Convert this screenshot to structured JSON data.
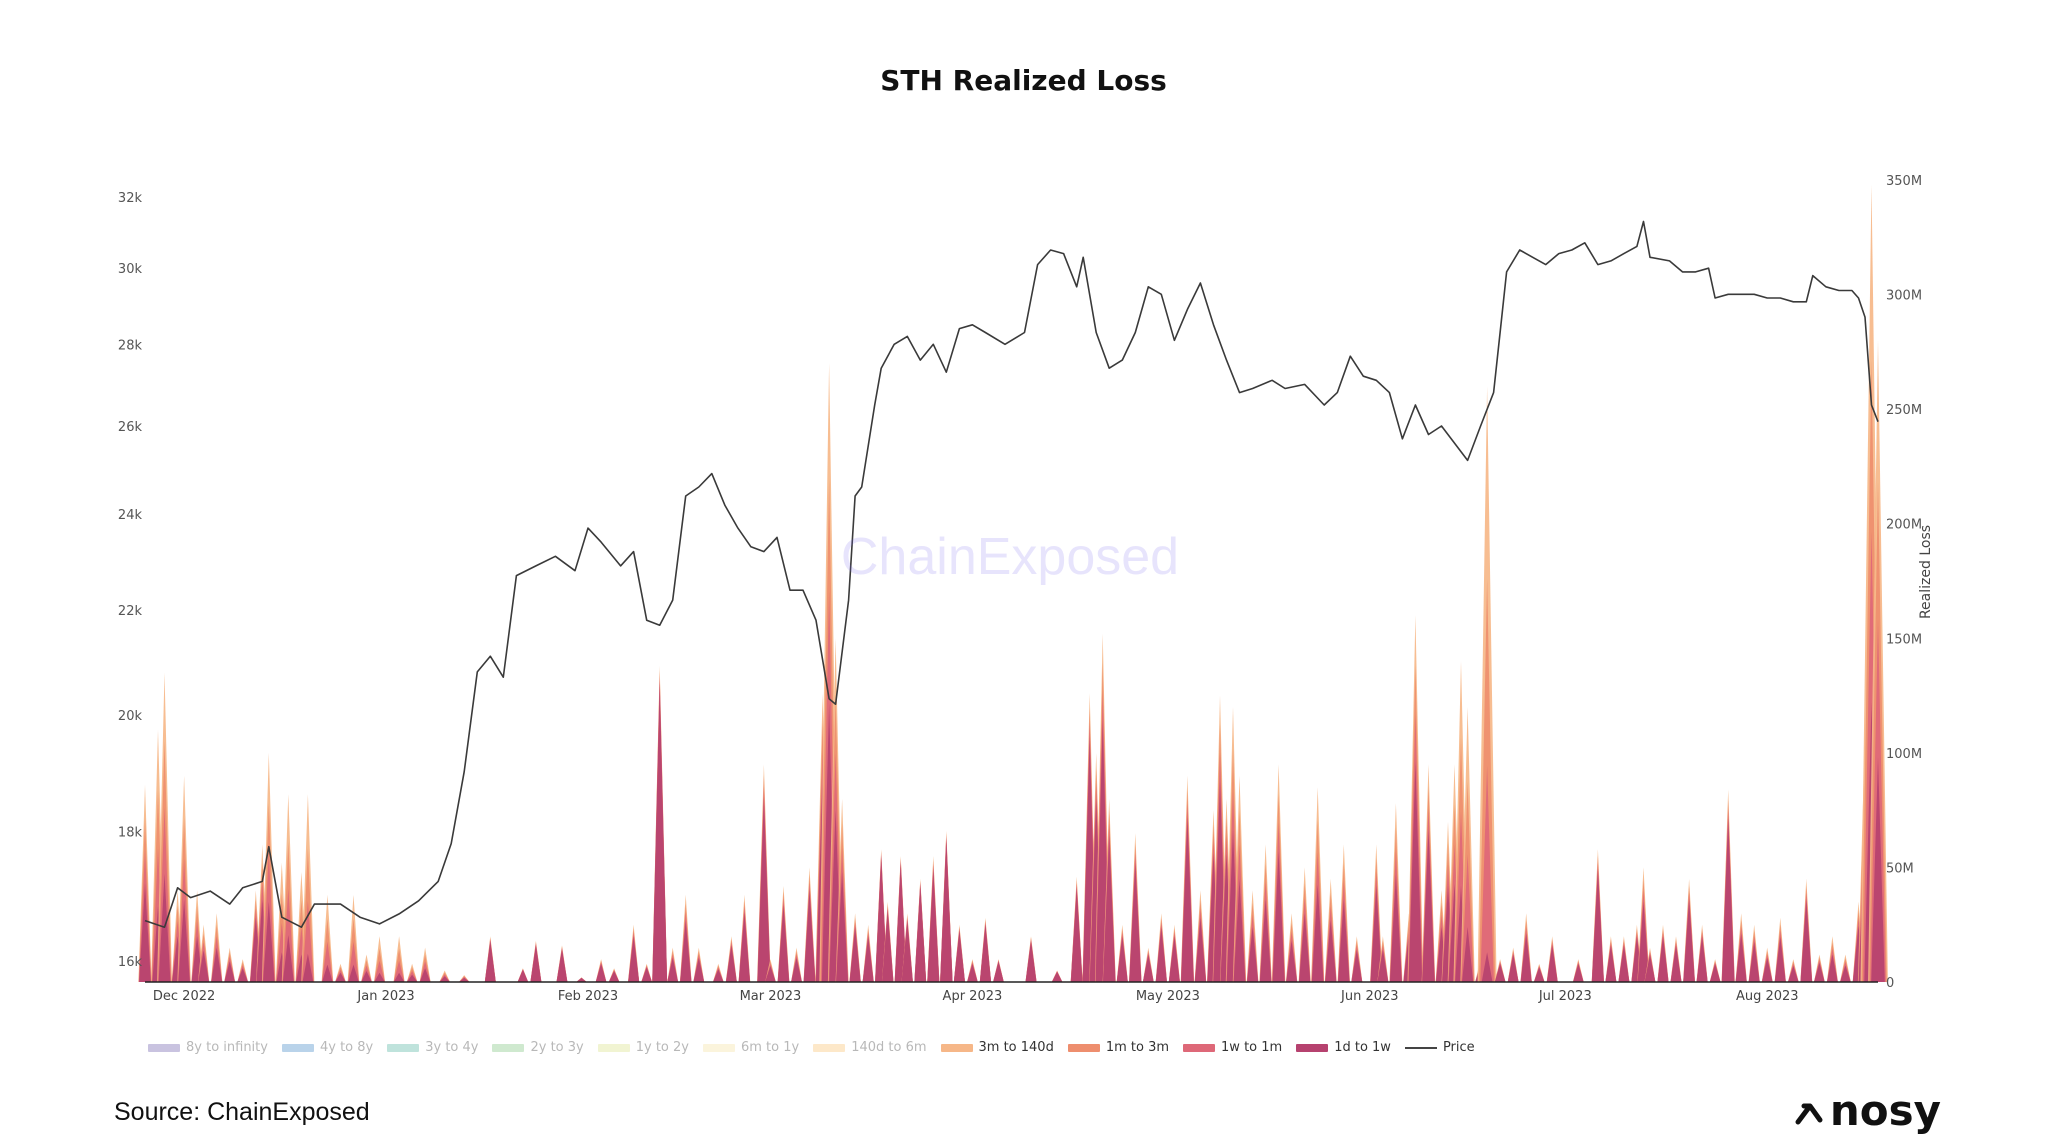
{
  "chart_data": {
    "type": "area",
    "title": "STH Realized Loss",
    "watermark": "ChainExposed",
    "x_range": [
      "2022-11-25",
      "2023-08-18"
    ],
    "x_tick_labels": [
      "Dec 2022",
      "Jan 2023",
      "Feb 2023",
      "Mar 2023",
      "Apr 2023",
      "May 2023",
      "Jun 2023",
      "Jul 2023",
      "Aug 2023"
    ],
    "x_tick_dates": [
      "2022-12-01",
      "2023-01-01",
      "2023-02-01",
      "2023-03-01",
      "2023-04-01",
      "2023-05-01",
      "2023-06-01",
      "2023-07-01",
      "2023-08-01"
    ],
    "y_left": {
      "label": "",
      "scale": "log",
      "range": [
        15700,
        32500
      ],
      "tick_labels": [
        "16k",
        "18k",
        "20k",
        "22k",
        "24k",
        "26k",
        "28k",
        "30k",
        "32k"
      ],
      "tick_values": [
        16000,
        18000,
        20000,
        22000,
        24000,
        26000,
        28000,
        30000,
        32000
      ]
    },
    "y_right": {
      "label": "Realized Loss",
      "scale": "linear",
      "range": [
        0,
        350000000
      ],
      "tick_labels": [
        "0",
        "50M",
        "100M",
        "150M",
        "200M",
        "250M",
        "300M",
        "350M"
      ],
      "tick_values": [
        0,
        50000000,
        100000000,
        150000000,
        200000000,
        250000000,
        300000000,
        350000000
      ]
    },
    "legend_position": "bottom",
    "grid": false,
    "legend": [
      {
        "name": "8y to infinity",
        "color": "#c9c3e0",
        "faded": true
      },
      {
        "name": "4y to 8y",
        "color": "#b9d3ea",
        "faded": true
      },
      {
        "name": "3y to 4y",
        "color": "#bfe3dc",
        "faded": true
      },
      {
        "name": "2y to 3y",
        "color": "#cfe9cf",
        "faded": true
      },
      {
        "name": "1y to 2y",
        "color": "#f1f4d2",
        "faded": true
      },
      {
        "name": "6m to 1y",
        "color": "#fbf4dc",
        "faded": true
      },
      {
        "name": "140d to 6m",
        "color": "#fde8c9",
        "faded": true
      },
      {
        "name": "3m to 140d",
        "color": "#f6b788",
        "faded": false
      },
      {
        "name": "1m to 3m",
        "color": "#ee8e6e",
        "faded": false
      },
      {
        "name": "1w to 1m",
        "color": "#de6878",
        "faded": false
      },
      {
        "name": "1d to 1w",
        "color": "#b6426f",
        "faded": false
      },
      {
        "name": "Price",
        "color": "#444444",
        "faded": false,
        "line": true
      }
    ],
    "price_series": {
      "name": "Price",
      "points": [
        [
          "2022-11-25",
          16600
        ],
        [
          "2022-11-28",
          16500
        ],
        [
          "2022-11-30",
          17100
        ],
        [
          "2022-12-02",
          16950
        ],
        [
          "2022-12-05",
          17050
        ],
        [
          "2022-12-08",
          16850
        ],
        [
          "2022-12-10",
          17100
        ],
        [
          "2022-12-13",
          17200
        ],
        [
          "2022-12-14",
          17750
        ],
        [
          "2022-12-16",
          16650
        ],
        [
          "2022-12-19",
          16500
        ],
        [
          "2022-12-21",
          16850
        ],
        [
          "2022-12-25",
          16850
        ],
        [
          "2022-12-28",
          16650
        ],
        [
          "2022-12-31",
          16550
        ],
        [
          "2023-01-03",
          16700
        ],
        [
          "2023-01-06",
          16900
        ],
        [
          "2023-01-09",
          17200
        ],
        [
          "2023-01-11",
          17800
        ],
        [
          "2023-01-13",
          19000
        ],
        [
          "2023-01-15",
          20800
        ],
        [
          "2023-01-17",
          21100
        ],
        [
          "2023-01-19",
          20700
        ],
        [
          "2023-01-21",
          22700
        ],
        [
          "2023-01-24",
          22900
        ],
        [
          "2023-01-27",
          23100
        ],
        [
          "2023-01-30",
          22800
        ],
        [
          "2023-02-01",
          23700
        ],
        [
          "2023-02-03",
          23400
        ],
        [
          "2023-02-06",
          22900
        ],
        [
          "2023-02-08",
          23200
        ],
        [
          "2023-02-10",
          21800
        ],
        [
          "2023-02-12",
          21700
        ],
        [
          "2023-02-14",
          22200
        ],
        [
          "2023-02-16",
          24400
        ],
        [
          "2023-02-18",
          24600
        ],
        [
          "2023-02-20",
          24900
        ],
        [
          "2023-02-22",
          24200
        ],
        [
          "2023-02-24",
          23700
        ],
        [
          "2023-02-26",
          23300
        ],
        [
          "2023-02-28",
          23200
        ],
        [
          "2023-03-02",
          23500
        ],
        [
          "2023-03-04",
          22400
        ],
        [
          "2023-03-06",
          22400
        ],
        [
          "2023-03-08",
          21800
        ],
        [
          "2023-03-10",
          20300
        ],
        [
          "2023-03-11",
          20200
        ],
        [
          "2023-03-13",
          22200
        ],
        [
          "2023-03-14",
          24400
        ],
        [
          "2023-03-15",
          24600
        ],
        [
          "2023-03-17",
          26500
        ],
        [
          "2023-03-18",
          27400
        ],
        [
          "2023-03-20",
          28000
        ],
        [
          "2023-03-22",
          28200
        ],
        [
          "2023-03-24",
          27600
        ],
        [
          "2023-03-26",
          28000
        ],
        [
          "2023-03-28",
          27300
        ],
        [
          "2023-03-30",
          28400
        ],
        [
          "2023-04-01",
          28500
        ],
        [
          "2023-04-03",
          28300
        ],
        [
          "2023-04-06",
          28000
        ],
        [
          "2023-04-09",
          28300
        ],
        [
          "2023-04-11",
          30100
        ],
        [
          "2023-04-13",
          30500
        ],
        [
          "2023-04-15",
          30400
        ],
        [
          "2023-04-17",
          29500
        ],
        [
          "2023-04-18",
          30300
        ],
        [
          "2023-04-20",
          28300
        ],
        [
          "2023-04-22",
          27400
        ],
        [
          "2023-04-24",
          27600
        ],
        [
          "2023-04-26",
          28300
        ],
        [
          "2023-04-28",
          29500
        ],
        [
          "2023-04-30",
          29300
        ],
        [
          "2023-05-02",
          28100
        ],
        [
          "2023-05-04",
          28900
        ],
        [
          "2023-05-06",
          29600
        ],
        [
          "2023-05-08",
          28500
        ],
        [
          "2023-05-10",
          27600
        ],
        [
          "2023-05-12",
          26800
        ],
        [
          "2023-05-14",
          26900
        ],
        [
          "2023-05-17",
          27100
        ],
        [
          "2023-05-19",
          26900
        ],
        [
          "2023-05-22",
          27000
        ],
        [
          "2023-05-25",
          26500
        ],
        [
          "2023-05-27",
          26800
        ],
        [
          "2023-05-29",
          27700
        ],
        [
          "2023-05-31",
          27200
        ],
        [
          "2023-06-02",
          27100
        ],
        [
          "2023-06-04",
          26800
        ],
        [
          "2023-06-06",
          25700
        ],
        [
          "2023-06-08",
          26500
        ],
        [
          "2023-06-10",
          25800
        ],
        [
          "2023-06-12",
          26000
        ],
        [
          "2023-06-14",
          25600
        ],
        [
          "2023-06-16",
          25200
        ],
        [
          "2023-06-18",
          26000
        ],
        [
          "2023-06-20",
          26800
        ],
        [
          "2023-06-21",
          28300
        ],
        [
          "2023-06-22",
          29900
        ],
        [
          "2023-06-24",
          30500
        ],
        [
          "2023-06-26",
          30300
        ],
        [
          "2023-06-28",
          30100
        ],
        [
          "2023-06-30",
          30400
        ],
        [
          "2023-07-02",
          30500
        ],
        [
          "2023-07-04",
          30700
        ],
        [
          "2023-07-06",
          30100
        ],
        [
          "2023-07-08",
          30200
        ],
        [
          "2023-07-10",
          30400
        ],
        [
          "2023-07-12",
          30600
        ],
        [
          "2023-07-13",
          31300
        ],
        [
          "2023-07-14",
          30300
        ],
        [
          "2023-07-17",
          30200
        ],
        [
          "2023-07-19",
          29900
        ],
        [
          "2023-07-21",
          29900
        ],
        [
          "2023-07-23",
          30000
        ],
        [
          "2023-07-24",
          29200
        ],
        [
          "2023-07-26",
          29300
        ],
        [
          "2023-07-28",
          29300
        ],
        [
          "2023-07-30",
          29300
        ],
        [
          "2023-08-01",
          29200
        ],
        [
          "2023-08-03",
          29200
        ],
        [
          "2023-08-05",
          29100
        ],
        [
          "2023-08-07",
          29100
        ],
        [
          "2023-08-08",
          29800
        ],
        [
          "2023-08-10",
          29500
        ],
        [
          "2023-08-12",
          29400
        ],
        [
          "2023-08-14",
          29400
        ],
        [
          "2023-08-15",
          29200
        ],
        [
          "2023-08-16",
          28700
        ],
        [
          "2023-08-17",
          26500
        ],
        [
          "2023-08-18",
          26100
        ]
      ]
    },
    "loss_spikes": [
      [
        "2022-11-25",
        86,
        0.5
      ],
      [
        "2022-11-27",
        110,
        0.3
      ],
      [
        "2022-11-28",
        135,
        0.35
      ],
      [
        "2022-11-30",
        40,
        0.5
      ],
      [
        "2022-12-01",
        90,
        0.4
      ],
      [
        "2022-12-03",
        40,
        0.5
      ],
      [
        "2022-12-04",
        25,
        0.55
      ],
      [
        "2022-12-06",
        30,
        0.5
      ],
      [
        "2022-12-08",
        15,
        0.6
      ],
      [
        "2022-12-10",
        10,
        0.6
      ],
      [
        "2022-12-12",
        40,
        0.7
      ],
      [
        "2022-12-13",
        60,
        0.6
      ],
      [
        "2022-12-14",
        100,
        0.35
      ],
      [
        "2022-12-16",
        52,
        0.25
      ],
      [
        "2022-12-17",
        82,
        0.25
      ],
      [
        "2022-12-19",
        48,
        0.25
      ],
      [
        "2022-12-20",
        82,
        0.15
      ],
      [
        "2022-12-23",
        38,
        0.2
      ],
      [
        "2022-12-25",
        8,
        0.5
      ],
      [
        "2022-12-27",
        38,
        0.2
      ],
      [
        "2022-12-29",
        12,
        0.4
      ],
      [
        "2022-12-31",
        20,
        0.2
      ],
      [
        "2023-01-03",
        20,
        0.2
      ],
      [
        "2023-01-05",
        8,
        0.4
      ],
      [
        "2023-01-07",
        15,
        0.4
      ],
      [
        "2023-01-10",
        5,
        0.5
      ],
      [
        "2023-01-13",
        3,
        0.6
      ],
      [
        "2023-01-17",
        20,
        0.9
      ],
      [
        "2023-01-22",
        6,
        0.9
      ],
      [
        "2023-01-24",
        18,
        0.9
      ],
      [
        "2023-01-28",
        16,
        0.9
      ],
      [
        "2023-01-31",
        2,
        0.9
      ],
      [
        "2023-02-03",
        10,
        0.8
      ],
      [
        "2023-02-05",
        6,
        0.8
      ],
      [
        "2023-02-08",
        25,
        0.8
      ],
      [
        "2023-02-10",
        8,
        0.8
      ],
      [
        "2023-02-12",
        138,
        0.95
      ],
      [
        "2023-02-14",
        15,
        0.7
      ],
      [
        "2023-02-16",
        38,
        0.7
      ],
      [
        "2023-02-18",
        15,
        0.7
      ],
      [
        "2023-02-21",
        8,
        0.7
      ],
      [
        "2023-02-23",
        20,
        0.8
      ],
      [
        "2023-02-25",
        38,
        0.8
      ],
      [
        "2023-02-28",
        95,
        0.85
      ],
      [
        "2023-03-01",
        10,
        0.7
      ],
      [
        "2023-03-03",
        42,
        0.8
      ],
      [
        "2023-03-05",
        15,
        0.7
      ],
      [
        "2023-03-07",
        50,
        0.8
      ],
      [
        "2023-03-09",
        126,
        0.7
      ],
      [
        "2023-03-10",
        270,
        0.45
      ],
      [
        "2023-03-11",
        150,
        0.5
      ],
      [
        "2023-03-12",
        80,
        0.6
      ],
      [
        "2023-03-14",
        30,
        0.8
      ],
      [
        "2023-03-16",
        25,
        0.8
      ],
      [
        "2023-03-18",
        58,
        0.95
      ],
      [
        "2023-03-19",
        35,
        0.9
      ],
      [
        "2023-03-21",
        55,
        0.95
      ],
      [
        "2023-03-22",
        30,
        0.9
      ],
      [
        "2023-03-24",
        45,
        0.95
      ],
      [
        "2023-03-26",
        55,
        0.9
      ],
      [
        "2023-03-28",
        66,
        0.95
      ],
      [
        "2023-03-30",
        25,
        0.9
      ],
      [
        "2023-04-01",
        10,
        0.8
      ],
      [
        "2023-04-03",
        28,
        0.9
      ],
      [
        "2023-04-05",
        10,
        0.9
      ],
      [
        "2023-04-10",
        20,
        0.9
      ],
      [
        "2023-04-14",
        5,
        0.9
      ],
      [
        "2023-04-17",
        46,
        0.9
      ],
      [
        "2023-04-19",
        126,
        0.85
      ],
      [
        "2023-04-20",
        100,
        0.8
      ],
      [
        "2023-04-21",
        152,
        0.75
      ],
      [
        "2023-04-22",
        80,
        0.8
      ],
      [
        "2023-04-24",
        25,
        0.8
      ],
      [
        "2023-04-26",
        65,
        0.8
      ],
      [
        "2023-04-28",
        15,
        0.8
      ],
      [
        "2023-04-30",
        30,
        0.8
      ],
      [
        "2023-05-02",
        25,
        0.8
      ],
      [
        "2023-05-04",
        90,
        0.8
      ],
      [
        "2023-05-06",
        40,
        0.7
      ],
      [
        "2023-05-08",
        75,
        0.75
      ],
      [
        "2023-05-09",
        125,
        0.7
      ],
      [
        "2023-05-10",
        80,
        0.7
      ],
      [
        "2023-05-11",
        120,
        0.55
      ],
      [
        "2023-05-12",
        90,
        0.5
      ],
      [
        "2023-05-14",
        40,
        0.6
      ],
      [
        "2023-05-16",
        60,
        0.6
      ],
      [
        "2023-05-18",
        95,
        0.6
      ],
      [
        "2023-05-20",
        30,
        0.6
      ],
      [
        "2023-05-22",
        50,
        0.6
      ],
      [
        "2023-05-24",
        85,
        0.5
      ],
      [
        "2023-05-26",
        45,
        0.6
      ],
      [
        "2023-05-28",
        60,
        0.6
      ],
      [
        "2023-05-30",
        20,
        0.7
      ],
      [
        "2023-06-02",
        60,
        0.7
      ],
      [
        "2023-06-03",
        20,
        0.7
      ],
      [
        "2023-06-05",
        78,
        0.6
      ],
      [
        "2023-06-07",
        30,
        0.7
      ],
      [
        "2023-06-08",
        160,
        0.6
      ],
      [
        "2023-06-10",
        95,
        0.7
      ],
      [
        "2023-06-12",
        40,
        0.6
      ],
      [
        "2023-06-13",
        70,
        0.6
      ],
      [
        "2023-06-14",
        95,
        0.45
      ],
      [
        "2023-06-15",
        140,
        0.3
      ],
      [
        "2023-06-16",
        120,
        0.2
      ],
      [
        "2023-06-18",
        10,
        0.7
      ],
      [
        "2023-06-19",
        260,
        0.05
      ],
      [
        "2023-06-21",
        10,
        0.8
      ],
      [
        "2023-06-23",
        15,
        0.8
      ],
      [
        "2023-06-25",
        30,
        0.7
      ],
      [
        "2023-06-27",
        8,
        0.8
      ],
      [
        "2023-06-29",
        20,
        0.8
      ],
      [
        "2023-07-03",
        10,
        0.8
      ],
      [
        "2023-07-06",
        58,
        0.85
      ],
      [
        "2023-07-08",
        20,
        0.8
      ],
      [
        "2023-07-10",
        20,
        0.8
      ],
      [
        "2023-07-12",
        25,
        0.8
      ],
      [
        "2023-07-13",
        50,
        0.7
      ],
      [
        "2023-07-14",
        15,
        0.8
      ],
      [
        "2023-07-16",
        25,
        0.8
      ],
      [
        "2023-07-18",
        20,
        0.8
      ],
      [
        "2023-07-20",
        45,
        0.8
      ],
      [
        "2023-07-22",
        25,
        0.8
      ],
      [
        "2023-07-24",
        10,
        0.8
      ],
      [
        "2023-07-26",
        84,
        0.85
      ],
      [
        "2023-07-28",
        30,
        0.7
      ],
      [
        "2023-07-30",
        25,
        0.7
      ],
      [
        "2023-08-01",
        15,
        0.7
      ],
      [
        "2023-08-03",
        28,
        0.7
      ],
      [
        "2023-08-05",
        10,
        0.7
      ],
      [
        "2023-08-07",
        45,
        0.8
      ],
      [
        "2023-08-09",
        12,
        0.7
      ],
      [
        "2023-08-11",
        20,
        0.6
      ],
      [
        "2023-08-13",
        12,
        0.6
      ],
      [
        "2023-08-15",
        35,
        0.7
      ],
      [
        "2023-08-16",
        110,
        0.6
      ],
      [
        "2023-08-17",
        348,
        0.35
      ],
      [
        "2023-08-18",
        280,
        0.35
      ]
    ],
    "loss_spikes_note": "Millions USD, [date, total realized loss, share of 1d to 1w cohort]"
  },
  "source": "Source: ChainExposed",
  "brand": "nosy"
}
